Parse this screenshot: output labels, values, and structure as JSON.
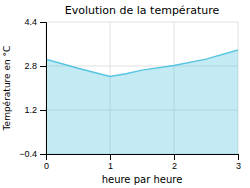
{
  "chart_data": {
    "type": "area",
    "title": "Evolution de la température",
    "xlabel": "heure par heure",
    "ylabel": "Température en °C",
    "x": [
      0,
      0.5,
      1.0,
      1.25,
      1.5,
      2.0,
      2.5,
      3.0
    ],
    "values": [
      3.05,
      2.72,
      2.42,
      2.52,
      2.65,
      2.82,
      3.05,
      3.38
    ],
    "color": "#56c5e0",
    "xlim": [
      0,
      3
    ],
    "ylim": [
      -0.4,
      4.4
    ],
    "xticks": [
      0,
      1,
      2,
      3
    ],
    "yticks": [
      -0.4,
      1.2,
      2.8,
      4.4
    ],
    "grid": true
  }
}
